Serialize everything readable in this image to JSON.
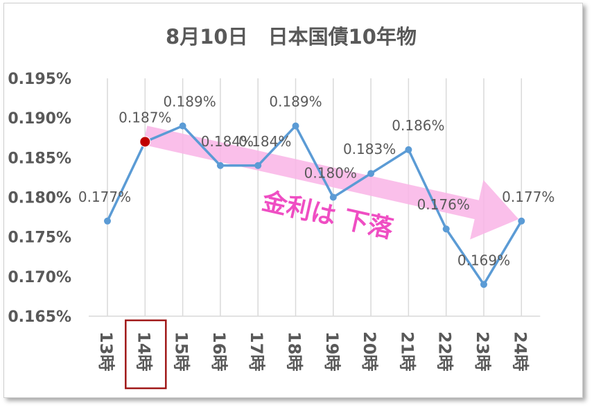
{
  "chart_data": {
    "type": "line",
    "title": "8月10日　日本国債10年物",
    "categories": [
      "13時",
      "14時",
      "15時",
      "16時",
      "17時",
      "18時",
      "19時",
      "20時",
      "21時",
      "22時",
      "23時",
      "24時"
    ],
    "values": [
      0.177,
      0.187,
      0.189,
      0.184,
      0.184,
      0.189,
      0.18,
      0.183,
      0.186,
      0.176,
      0.169,
      0.177
    ],
    "data_labels": [
      "0.177%",
      "0.187%",
      "0.189%",
      "0.184%",
      "0.184%",
      "0.189%",
      "0.180%",
      "0.183%",
      "0.186%",
      "0.176%",
      "0.169%",
      "0.177%"
    ],
    "ylim": [
      0.165,
      0.195
    ],
    "yticks": [
      "0.165%",
      "0.170%",
      "0.175%",
      "0.180%",
      "0.185%",
      "0.190%",
      "0.195%"
    ],
    "xlabel": "",
    "ylabel": "",
    "grid": "vertical lines at categories",
    "legend": "none",
    "highlight": {
      "category": "14時",
      "marker_color": "#c00000",
      "box_color": "#a01818"
    },
    "annotation": {
      "text": "金利は 下落",
      "color": "#ef4ec3",
      "arrow_color": "#f9b4e6"
    },
    "colors": {
      "line": "#5b9bd5",
      "text": "#595959",
      "grid": "#d9d9d9"
    }
  }
}
